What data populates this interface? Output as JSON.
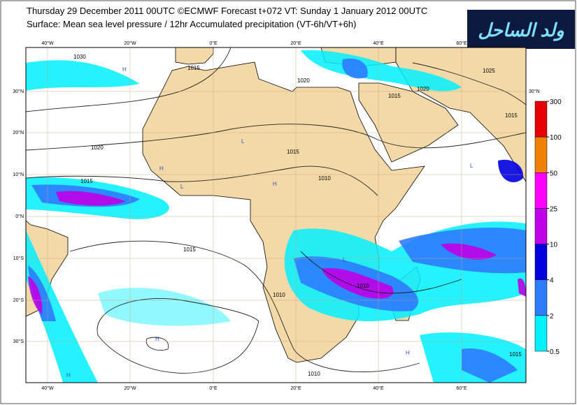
{
  "header": {
    "line1": "Thursday 29 December 2011 00UTC ©ECMWF Forecast t+072 VT: Sunday 1 January 2012 00UTC",
    "line2": "Surface: Mean sea level pressure / 12hr Accumulated precipitation (VT-6h/VT+6h)",
    "logo": "ولد الساحل"
  },
  "longitude_labels": [
    "40°W",
    "20°W",
    "0°E",
    "20°E",
    "40°E",
    "60°E"
  ],
  "latitude_labels": [
    "30°N",
    "20°N",
    "10°N",
    "0°N",
    "10°S",
    "20°S",
    "30°S"
  ],
  "right_label": "30°N",
  "contour_labels": [
    "1030",
    "1020",
    "1015",
    "1015",
    "1010",
    "1010",
    "1015",
    "1015",
    "1020",
    "1025",
    "1020",
    "1015",
    "1010",
    "1015",
    "1010",
    "1015"
  ],
  "pressure_centers": [
    "H",
    "H",
    "L",
    "H",
    "L",
    "H",
    "L",
    "H",
    "H",
    "L"
  ],
  "legend": {
    "levels": [
      300,
      100,
      50,
      25,
      10,
      4,
      2,
      0.5
    ],
    "colors": [
      "#e80000",
      "#f08000",
      "#ff00ff",
      "#c000e8",
      "#0000e0",
      "#2e7cff",
      "#00f0ff"
    ]
  }
}
